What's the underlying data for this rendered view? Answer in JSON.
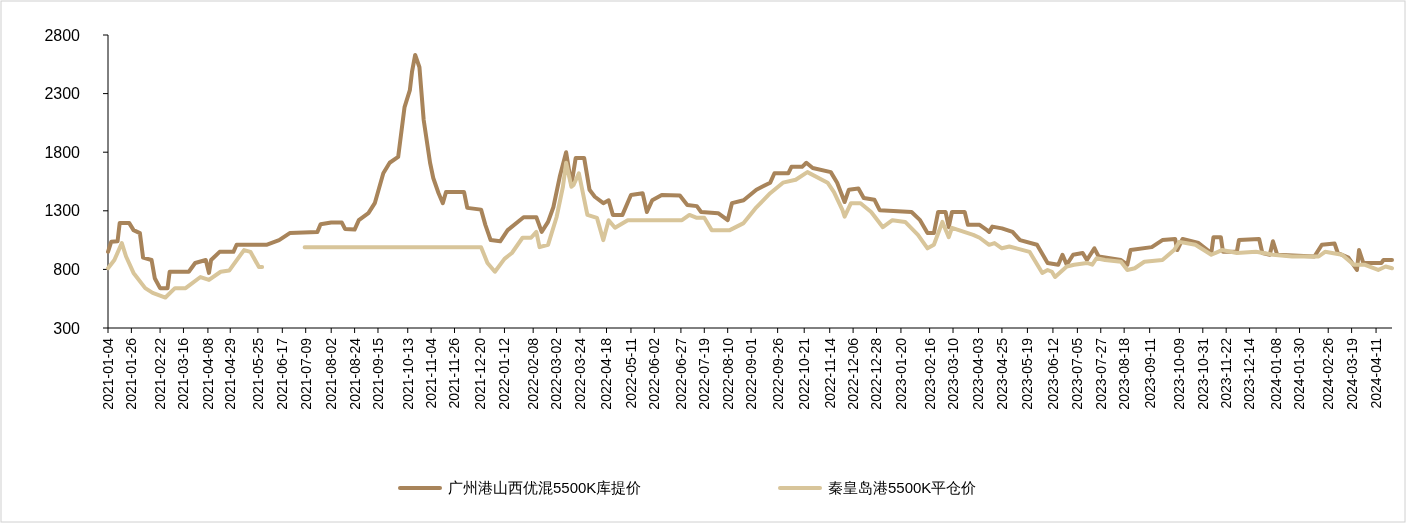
{
  "chart_data": {
    "type": "line",
    "xlim": [
      "2021-01-04",
      "2024-04-26"
    ],
    "ylim": [
      300,
      2800
    ],
    "yticks": [
      300,
      800,
      1300,
      1800,
      2300,
      2800
    ],
    "xticks": [
      "2021-01-04",
      "2021-01-26",
      "2021-02-22",
      "2021-03-16",
      "2021-04-08",
      "2021-04-29",
      "2021-05-25",
      "2021-06-17",
      "2021-07-09",
      "2021-08-02",
      "2021-08-24",
      "2021-09-15",
      "2021-10-13",
      "2021-11-04",
      "2021-11-26",
      "2021-12-20",
      "2022-01-12",
      "2022-02-08",
      "2022-03-02",
      "2022-03-24",
      "2022-04-18",
      "2022-05-11",
      "2022-06-02",
      "2022-06-27",
      "2022-07-19",
      "2022-08-10",
      "2022-09-01",
      "2022-09-26",
      "2022-10-21",
      "2022-11-14",
      "2022-12-06",
      "2022-12-28",
      "2023-01-20",
      "2023-02-16",
      "2023-03-10",
      "2023-04-03",
      "2023-04-25",
      "2023-05-19",
      "2023-06-12",
      "2023-07-05",
      "2023-07-27",
      "2023-08-18",
      "2023-09-11",
      "2023-10-09",
      "2023-10-31",
      "2023-11-22",
      "2023-12-14",
      "2024-01-08",
      "2024-01-30",
      "2024-02-26",
      "2024-03-19",
      "2024-04-11"
    ],
    "legend": "bottom",
    "grid": false,
    "marker": "none",
    "line_style": "solid",
    "series": [
      {
        "name": "广州港山西优混5500K库提价",
        "color": "#a8845a",
        "x": [
          "2021-01-04",
          "2021-01-07",
          "2021-01-13",
          "2021-01-15",
          "2021-01-24",
          "2021-01-28",
          "2021-02-03",
          "2021-02-06",
          "2021-02-14",
          "2021-02-17",
          "2021-02-22",
          "2021-03-01",
          "2021-03-03",
          "2021-03-21",
          "2021-03-27",
          "2021-04-06",
          "2021-04-09",
          "2021-04-11",
          "2021-04-19",
          "2021-05-02",
          "2021-05-05",
          "2021-06-02",
          "2021-06-14",
          "2021-06-24",
          "2021-07-20",
          "2021-07-23",
          "2021-08-02",
          "2021-08-12",
          "2021-08-15",
          "2021-08-24",
          "2021-08-28",
          "2021-09-06",
          "2021-09-12",
          "2021-09-20",
          "2021-09-26",
          "2021-10-04",
          "2021-10-10",
          "2021-10-15",
          "2021-10-17",
          "2021-10-20",
          "2021-10-24",
          "2021-10-28",
          "2021-11-03",
          "2021-11-06",
          "2021-11-11",
          "2021-11-15",
          "2021-11-18",
          "2021-12-05",
          "2021-12-08",
          "2021-12-21",
          "2021-12-25",
          "2021-12-30",
          "2022-01-08",
          "2022-01-15",
          "2022-01-30",
          "2022-02-11",
          "2022-02-16",
          "2022-02-22",
          "2022-02-27",
          "2022-03-05",
          "2022-03-11",
          "2022-03-16",
          "2022-03-20",
          "2022-03-28",
          "2022-04-02",
          "2022-04-07",
          "2022-04-15",
          "2022-04-20",
          "2022-04-24",
          "2022-05-03",
          "2022-05-11",
          "2022-05-22",
          "2022-05-26",
          "2022-05-31",
          "2022-06-09",
          "2022-06-26",
          "2022-07-03",
          "2022-07-12",
          "2022-07-16",
          "2022-08-01",
          "2022-08-10",
          "2022-08-14",
          "2022-08-25",
          "2022-09-06",
          "2022-09-19",
          "2022-09-23",
          "2022-10-06",
          "2022-10-09",
          "2022-10-19",
          "2022-10-23",
          "2022-10-29",
          "2022-11-15",
          "2022-11-21",
          "2022-11-28",
          "2022-12-02",
          "2022-12-11",
          "2022-12-16",
          "2022-12-26",
          "2022-12-31",
          "2023-01-30",
          "2023-02-07",
          "2023-02-14",
          "2023-02-20",
          "2023-02-24",
          "2023-03-03",
          "2023-03-06",
          "2023-03-09",
          "2023-03-21",
          "2023-03-24",
          "2023-04-04",
          "2023-04-11",
          "2023-04-13",
          "2023-04-16",
          "2023-04-25",
          "2023-05-05",
          "2023-05-12",
          "2023-05-28",
          "2023-06-07",
          "2023-06-17",
          "2023-06-21",
          "2023-06-25",
          "2023-07-01",
          "2023-07-10",
          "2023-07-14",
          "2023-07-21",
          "2023-07-25",
          "2023-08-15",
          "2023-08-21",
          "2023-08-24",
          "2023-09-13",
          "2023-09-23",
          "2023-10-05",
          "2023-10-07",
          "2023-10-12",
          "2023-10-27",
          "2023-11-08",
          "2023-11-10",
          "2023-11-17",
          "2023-11-19",
          "2023-12-02",
          "2023-12-04",
          "2023-12-23",
          "2023-12-26",
          "2024-01-02",
          "2024-01-05",
          "2024-01-09",
          "2024-02-13",
          "2024-02-20",
          "2024-03-03",
          "2024-03-06",
          "2024-03-16",
          "2024-03-24",
          "2024-03-26",
          "2024-03-30",
          "2024-04-16",
          "2024-04-18",
          "2024-04-26"
        ],
        "values": [
          950,
          1035,
          1040,
          1195,
          1195,
          1135,
          1110,
          900,
          880,
          725,
          640,
          640,
          780,
          780,
          855,
          880,
          770,
          880,
          950,
          950,
          1010,
          1010,
          1050,
          1110,
          1120,
          1185,
          1200,
          1200,
          1145,
          1140,
          1220,
          1280,
          1365,
          1620,
          1710,
          1760,
          2185,
          2330,
          2485,
          2630,
          2525,
          2075,
          1710,
          1580,
          1450,
          1365,
          1460,
          1460,
          1325,
          1310,
          1180,
          1050,
          1040,
          1135,
          1245,
          1245,
          1120,
          1205,
          1330,
          1590,
          1800,
          1520,
          1750,
          1750,
          1480,
          1420,
          1365,
          1390,
          1265,
          1265,
          1435,
          1450,
          1290,
          1390,
          1435,
          1430,
          1350,
          1340,
          1290,
          1280,
          1220,
          1365,
          1390,
          1480,
          1540,
          1620,
          1620,
          1675,
          1675,
          1710,
          1665,
          1630,
          1540,
          1375,
          1480,
          1490,
          1410,
          1395,
          1305,
          1290,
          1220,
          1110,
          1110,
          1290,
          1290,
          1160,
          1290,
          1290,
          1180,
          1180,
          1135,
          1120,
          1165,
          1150,
          1120,
          1050,
          1010,
          855,
          840,
          925,
          840,
          925,
          940,
          880,
          980,
          910,
          880,
          840,
          965,
          990,
          1050,
          1060,
          965,
          1060,
          1025,
          940,
          1075,
          1075,
          950,
          950,
          1050,
          1060,
          940,
          925,
          1040,
          925,
          910,
          1010,
          1020,
          940,
          900,
          795,
          965,
          855,
          855,
          880,
          880
        ]
      },
      {
        "name": "秦皇岛港5500K平仓价",
        "color": "#d8c59a",
        "x": [
          "2021-01-04",
          "2021-01-10",
          "2021-01-17",
          "2021-01-21",
          "2021-01-28",
          "2021-02-08",
          "2021-02-15",
          "2021-02-27",
          "2021-03-08",
          "2021-03-18",
          "2021-04-01",
          "2021-04-09",
          "2021-04-20",
          "2021-04-28",
          "2021-05-12",
          "2021-05-18",
          "2021-05-26",
          "2021-05-29",
          "2021-06-15",
          "2021-07-08",
          "2021-12-21",
          "2021-12-27",
          "2022-01-03",
          "2022-01-12",
          "2022-01-19",
          "2022-01-29",
          "2022-02-06",
          "2022-02-11",
          "2022-02-14",
          "2022-02-22",
          "2022-03-02",
          "2022-03-08",
          "2022-03-11",
          "2022-03-16",
          "2022-03-18",
          "2022-03-23",
          "2022-03-31",
          "2022-04-09",
          "2022-04-15",
          "2022-04-20",
          "2022-04-26",
          "2022-05-08",
          "2022-06-28",
          "2022-07-05",
          "2022-07-12",
          "2022-07-19",
          "2022-07-26",
          "2022-08-12",
          "2022-08-25",
          "2022-09-06",
          "2022-09-19",
          "2022-10-01",
          "2022-10-13",
          "2022-10-24",
          "2022-11-12",
          "2022-11-18",
          "2022-11-26",
          "2022-11-28",
          "2022-12-04",
          "2022-12-13",
          "2022-12-23",
          "2023-01-03",
          "2023-01-12",
          "2023-01-24",
          "2023-02-05",
          "2023-02-14",
          "2023-02-20",
          "2023-02-28",
          "2023-03-06",
          "2023-03-09",
          "2023-03-29",
          "2023-04-04",
          "2023-04-13",
          "2023-04-18",
          "2023-04-25",
          "2023-05-02",
          "2023-05-21",
          "2023-06-02",
          "2023-06-07",
          "2023-06-11",
          "2023-06-14",
          "2023-06-25",
          "2023-07-02",
          "2023-07-14",
          "2023-07-19",
          "2023-07-23",
          "2023-07-31",
          "2023-08-15",
          "2023-08-21",
          "2023-08-28",
          "2023-09-06",
          "2023-09-23",
          "2023-10-04",
          "2023-10-09",
          "2023-10-24",
          "2023-11-08",
          "2023-11-18",
          "2023-12-02",
          "2023-12-20",
          "2024-01-05",
          "2024-01-23",
          "2024-02-17",
          "2024-02-23",
          "2024-03-10",
          "2024-03-21",
          "2024-03-31",
          "2024-04-13",
          "2024-04-20",
          "2024-04-26"
        ],
        "values": [
          810,
          880,
          1025,
          910,
          770,
          640,
          600,
          560,
          640,
          640,
          735,
          710,
          780,
          790,
          965,
          950,
          820,
          820,
          null,
          990,
          990,
          855,
          780,
          890,
          940,
          1070,
          1070,
          1120,
          990,
          1010,
          1245,
          1505,
          1710,
          1505,
          1520,
          1620,
          1265,
          1240,
          1050,
          1220,
          1155,
          1220,
          1220,
          1265,
          1240,
          1240,
          1135,
          1135,
          1195,
          1330,
          1450,
          1540,
          1565,
          1630,
          1540,
          1460,
          1305,
          1250,
          1365,
          1365,
          1290,
          1160,
          1220,
          1205,
          1095,
          980,
          1010,
          1205,
          1075,
          1155,
          1095,
          1070,
          1010,
          1025,
          980,
          995,
          950,
          770,
          795,
          780,
          735,
          825,
          840,
          855,
          840,
          895,
          880,
          865,
          795,
          810,
          865,
          880,
          965,
          1035,
          1010,
          925,
          965,
          940,
          950,
          925,
          910,
          910,
          950,
          925,
          840,
          840,
          795,
          825,
          810
        ]
      }
    ]
  }
}
